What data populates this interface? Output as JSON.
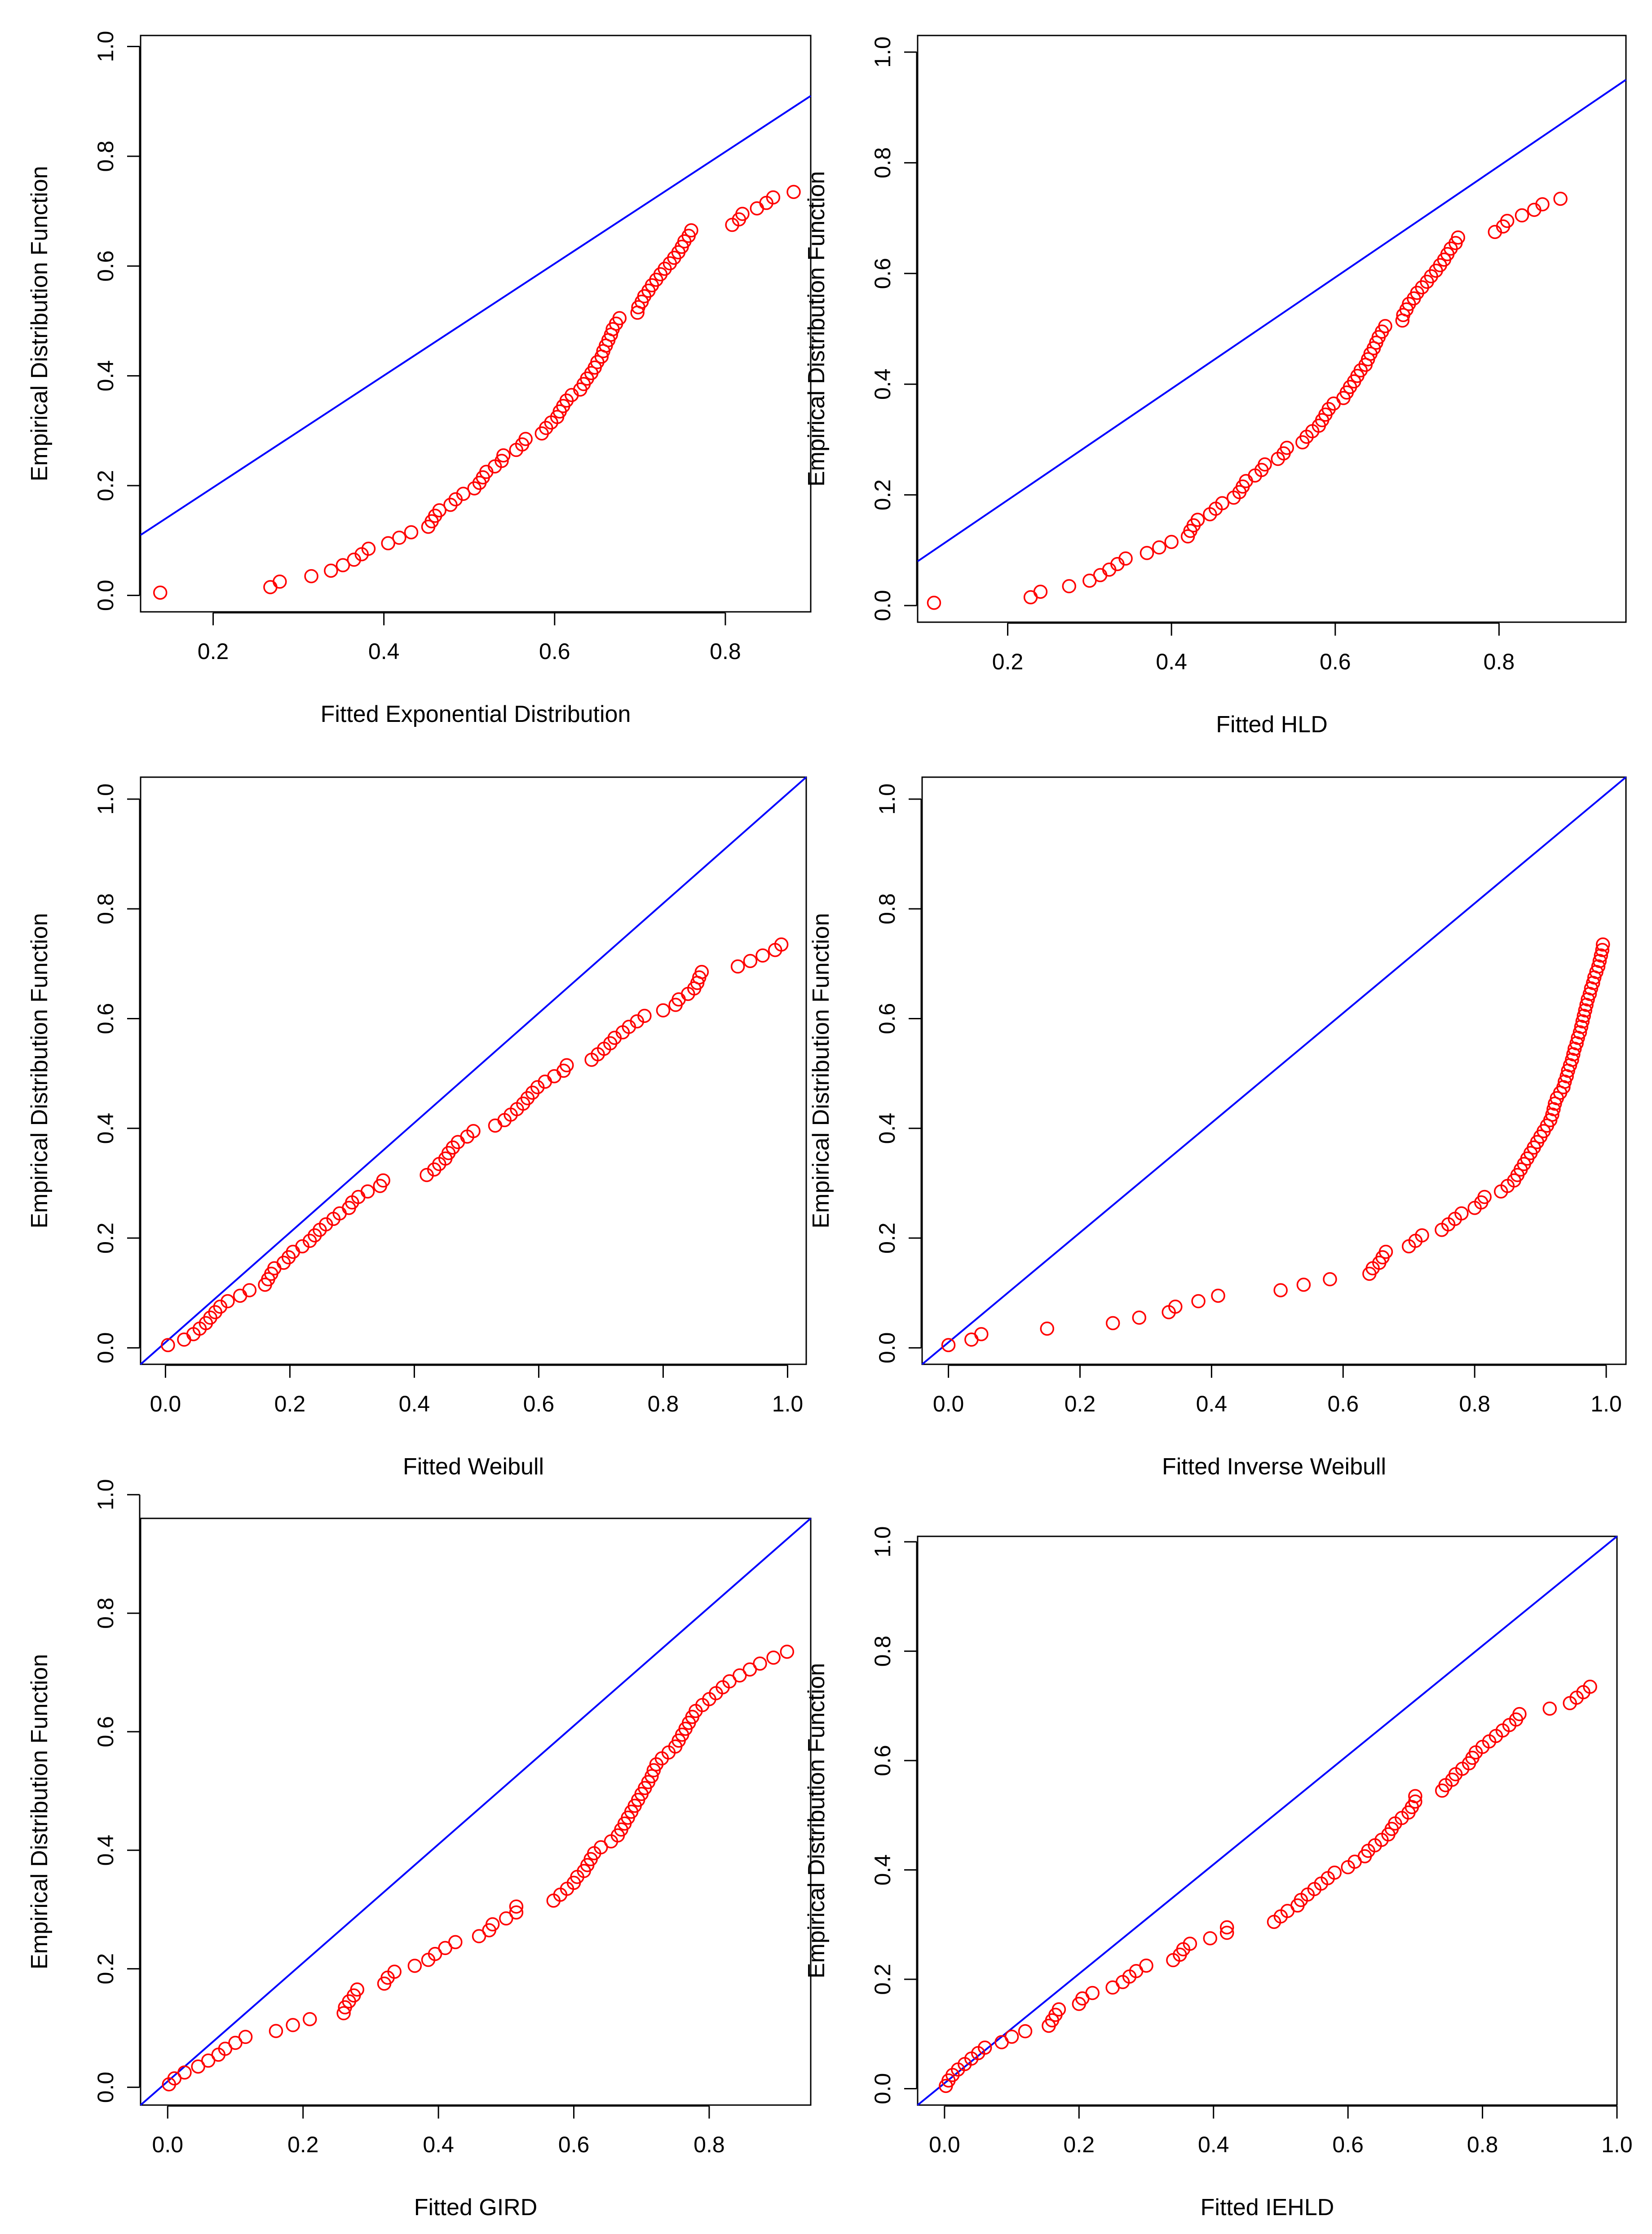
{
  "chart_data": [
    {
      "type": "scatter",
      "xlabel": "Fitted Exponential Distribution",
      "ylabel": "Empirical Distribution Function",
      "xlim": [
        0.115,
        0.9
      ],
      "ylim": [
        -0.03,
        1.02
      ],
      "xticks": [
        0.2,
        0.4,
        0.6,
        0.8
      ],
      "xtick_labels": [
        "0.2",
        "0.4",
        "0.6",
        "0.8"
      ],
      "yticks": [
        0.0,
        0.2,
        0.4,
        0.6,
        0.8,
        1.0
      ],
      "ytick_labels": [
        "0.0",
        "0.2",
        "0.4",
        "0.6",
        "0.8",
        "1.0"
      ],
      "reference_line": [
        [
          0.115,
          0.11
        ],
        [
          0.9,
          0.91
        ]
      ],
      "points_x": [
        0.138,
        0.267,
        0.278,
        0.315,
        0.338,
        0.352,
        0.365,
        0.374,
        0.382,
        0.405,
        0.418,
        0.432,
        0.452,
        0.456,
        0.46,
        0.465,
        0.478,
        0.484,
        0.493,
        0.506,
        0.512,
        0.516,
        0.52,
        0.53,
        0.538,
        0.54,
        0.555,
        0.562,
        0.566,
        0.585,
        0.59,
        0.596,
        0.603,
        0.606,
        0.61,
        0.614,
        0.62,
        0.63,
        0.634,
        0.638,
        0.643,
        0.647,
        0.65,
        0.655,
        0.657,
        0.66,
        0.663,
        0.666,
        0.668,
        0.672,
        0.676,
        0.697,
        0.698,
        0.702,
        0.705,
        0.71,
        0.714,
        0.719,
        0.724,
        0.729,
        0.735,
        0.74,
        0.745,
        0.749,
        0.752,
        0.757,
        0.76,
        0.808,
        0.816,
        0.82,
        0.837,
        0.848,
        0.856,
        0.88
      ],
      "points_y": [
        0.005,
        0.015,
        0.025,
        0.035,
        0.045,
        0.055,
        0.065,
        0.075,
        0.085,
        0.095,
        0.105,
        0.115,
        0.125,
        0.135,
        0.145,
        0.155,
        0.165,
        0.175,
        0.185,
        0.195,
        0.205,
        0.215,
        0.225,
        0.235,
        0.245,
        0.255,
        0.265,
        0.275,
        0.285,
        0.295,
        0.305,
        0.315,
        0.325,
        0.335,
        0.345,
        0.355,
        0.365,
        0.375,
        0.385,
        0.395,
        0.405,
        0.415,
        0.425,
        0.435,
        0.445,
        0.455,
        0.465,
        0.475,
        0.485,
        0.495,
        0.505,
        0.515,
        0.525,
        0.535,
        0.545,
        0.555,
        0.565,
        0.575,
        0.585,
        0.595,
        0.605,
        0.615,
        0.625,
        0.635,
        0.645,
        0.655,
        0.665,
        0.675,
        0.685,
        0.695,
        0.705,
        0.715,
        0.725,
        0.735
      ]
    },
    {
      "type": "scatter",
      "xlabel": "Fitted HLD",
      "ylabel": "Empirical Distribution Function",
      "xlim": [
        0.09,
        0.955
      ],
      "ylim": [
        -0.03,
        1.03
      ],
      "xticks": [
        0.2,
        0.4,
        0.6,
        0.8
      ],
      "xtick_labels": [
        "0.2",
        "0.4",
        "0.6",
        "0.8"
      ],
      "yticks": [
        0.0,
        0.2,
        0.4,
        0.6,
        0.8,
        1.0
      ],
      "ytick_labels": [
        "0.0",
        "0.2",
        "0.4",
        "0.6",
        "0.8",
        "1.0"
      ],
      "reference_line": [
        [
          0.09,
          0.08
        ],
        [
          0.955,
          0.95
        ]
      ],
      "points_x": [
        0.11,
        0.228,
        0.24,
        0.275,
        0.3,
        0.313,
        0.324,
        0.334,
        0.344,
        0.37,
        0.385,
        0.4,
        0.42,
        0.423,
        0.427,
        0.432,
        0.447,
        0.454,
        0.462,
        0.476,
        0.483,
        0.487,
        0.491,
        0.502,
        0.51,
        0.514,
        0.53,
        0.537,
        0.541,
        0.56,
        0.565,
        0.572,
        0.58,
        0.584,
        0.588,
        0.592,
        0.598,
        0.61,
        0.614,
        0.618,
        0.623,
        0.627,
        0.631,
        0.637,
        0.64,
        0.643,
        0.647,
        0.65,
        0.653,
        0.657,
        0.661,
        0.682,
        0.683,
        0.687,
        0.69,
        0.696,
        0.7,
        0.706,
        0.712,
        0.717,
        0.723,
        0.728,
        0.733,
        0.737,
        0.741,
        0.747,
        0.75,
        0.795,
        0.805,
        0.81,
        0.828,
        0.843,
        0.853,
        0.875
      ],
      "points_y": [
        0.005,
        0.015,
        0.025,
        0.035,
        0.045,
        0.055,
        0.065,
        0.075,
        0.085,
        0.095,
        0.105,
        0.115,
        0.125,
        0.135,
        0.145,
        0.155,
        0.165,
        0.175,
        0.185,
        0.195,
        0.205,
        0.215,
        0.225,
        0.235,
        0.245,
        0.255,
        0.265,
        0.275,
        0.285,
        0.295,
        0.305,
        0.315,
        0.325,
        0.335,
        0.345,
        0.355,
        0.365,
        0.375,
        0.385,
        0.395,
        0.405,
        0.415,
        0.425,
        0.435,
        0.445,
        0.455,
        0.465,
        0.475,
        0.485,
        0.495,
        0.505,
        0.515,
        0.525,
        0.535,
        0.545,
        0.555,
        0.565,
        0.575,
        0.585,
        0.595,
        0.605,
        0.615,
        0.625,
        0.635,
        0.645,
        0.655,
        0.665,
        0.675,
        0.685,
        0.695,
        0.705,
        0.715,
        0.725,
        0.735
      ]
    },
    {
      "type": "scatter",
      "xlabel": "Fitted Weibull",
      "ylabel": "Empirical Distribution Function",
      "xlim": [
        -0.04,
        1.03
      ],
      "ylim": [
        -0.03,
        1.04
      ],
      "xticks": [
        0.0,
        0.2,
        0.4,
        0.6,
        0.8,
        1.0
      ],
      "xtick_labels": [
        "0.0",
        "0.2",
        "0.4",
        "0.6",
        "0.8",
        "1.0"
      ],
      "yticks": [
        0.0,
        0.2,
        0.4,
        0.6,
        0.8,
        1.0
      ],
      "ytick_labels": [
        "0.0",
        "0.2",
        "0.4",
        "0.6",
        "0.8",
        "1.0"
      ],
      "reference_line": [
        [
          -0.04,
          -0.03
        ],
        [
          1.03,
          1.04
        ]
      ],
      "points_x": [
        0.004,
        0.03,
        0.045,
        0.055,
        0.065,
        0.072,
        0.08,
        0.088,
        0.1,
        0.12,
        0.135,
        0.16,
        0.165,
        0.17,
        0.175,
        0.19,
        0.198,
        0.205,
        0.22,
        0.232,
        0.24,
        0.248,
        0.258,
        0.27,
        0.28,
        0.295,
        0.3,
        0.31,
        0.325,
        0.345,
        0.35,
        0.42,
        0.432,
        0.44,
        0.45,
        0.455,
        0.462,
        0.47,
        0.485,
        0.495,
        0.53,
        0.545,
        0.555,
        0.565,
        0.575,
        0.582,
        0.59,
        0.598,
        0.61,
        0.625,
        0.64,
        0.645,
        0.685,
        0.695,
        0.705,
        0.715,
        0.722,
        0.735,
        0.745,
        0.758,
        0.77,
        0.8,
        0.82,
        0.825,
        0.84,
        0.85,
        0.855,
        0.858,
        0.862,
        0.92,
        0.94,
        0.96,
        0.98,
        0.99
      ],
      "points_y": [
        0.005,
        0.015,
        0.025,
        0.035,
        0.045,
        0.055,
        0.065,
        0.075,
        0.085,
        0.095,
        0.105,
        0.115,
        0.125,
        0.135,
        0.145,
        0.155,
        0.165,
        0.175,
        0.185,
        0.195,
        0.205,
        0.215,
        0.225,
        0.235,
        0.245,
        0.255,
        0.265,
        0.275,
        0.285,
        0.295,
        0.305,
        0.315,
        0.325,
        0.335,
        0.345,
        0.355,
        0.365,
        0.375,
        0.385,
        0.395,
        0.405,
        0.415,
        0.425,
        0.435,
        0.445,
        0.455,
        0.465,
        0.475,
        0.485,
        0.495,
        0.505,
        0.515,
        0.525,
        0.535,
        0.545,
        0.555,
        0.565,
        0.575,
        0.585,
        0.595,
        0.605,
        0.615,
        0.625,
        0.635,
        0.645,
        0.655,
        0.665,
        0.675,
        0.685,
        0.695,
        0.705,
        0.715,
        0.725,
        0.735
      ]
    },
    {
      "type": "scatter",
      "xlabel": "Fitted Inverse Weibull",
      "ylabel": "Empirical Distribution Function",
      "xlim": [
        -0.04,
        1.03
      ],
      "ylim": [
        -0.03,
        1.04
      ],
      "xticks": [
        0.0,
        0.2,
        0.4,
        0.6,
        0.8,
        1.0
      ],
      "xtick_labels": [
        "0.0",
        "0.2",
        "0.4",
        "0.6",
        "0.8",
        "1.0"
      ],
      "yticks": [
        0.0,
        0.2,
        0.4,
        0.6,
        0.8,
        1.0
      ],
      "ytick_labels": [
        "0.0",
        "0.2",
        "0.4",
        "0.6",
        "0.8",
        "1.0"
      ],
      "reference_line": [
        [
          -0.04,
          -0.03
        ],
        [
          1.03,
          1.04
        ]
      ],
      "points_x": [
        0.0,
        0.035,
        0.05,
        0.15,
        0.25,
        0.29,
        0.335,
        0.345,
        0.38,
        0.41,
        0.505,
        0.54,
        0.58,
        0.64,
        0.645,
        0.655,
        0.66,
        0.665,
        0.7,
        0.71,
        0.72,
        0.75,
        0.76,
        0.77,
        0.78,
        0.8,
        0.81,
        0.815,
        0.84,
        0.85,
        0.86,
        0.865,
        0.87,
        0.875,
        0.88,
        0.885,
        0.89,
        0.895,
        0.9,
        0.905,
        0.91,
        0.915,
        0.918,
        0.92,
        0.922,
        0.925,
        0.93,
        0.935,
        0.937,
        0.94,
        0.942,
        0.945,
        0.948,
        0.95,
        0.952,
        0.955,
        0.957,
        0.96,
        0.962,
        0.964,
        0.966,
        0.968,
        0.97,
        0.972,
        0.975,
        0.977,
        0.98,
        0.982,
        0.985,
        0.988,
        0.99,
        0.992,
        0.994,
        0.995
      ],
      "points_y": [
        0.005,
        0.015,
        0.025,
        0.035,
        0.045,
        0.055,
        0.065,
        0.075,
        0.085,
        0.095,
        0.105,
        0.115,
        0.125,
        0.135,
        0.145,
        0.155,
        0.165,
        0.175,
        0.185,
        0.195,
        0.205,
        0.215,
        0.225,
        0.235,
        0.245,
        0.255,
        0.265,
        0.275,
        0.285,
        0.295,
        0.305,
        0.315,
        0.325,
        0.335,
        0.345,
        0.355,
        0.365,
        0.375,
        0.385,
        0.395,
        0.405,
        0.415,
        0.425,
        0.435,
        0.445,
        0.455,
        0.465,
        0.475,
        0.485,
        0.495,
        0.505,
        0.515,
        0.525,
        0.535,
        0.545,
        0.555,
        0.565,
        0.575,
        0.585,
        0.595,
        0.605,
        0.615,
        0.625,
        0.635,
        0.645,
        0.655,
        0.665,
        0.675,
        0.685,
        0.695,
        0.705,
        0.715,
        0.725,
        0.735
      ]
    },
    {
      "type": "scatter",
      "xlabel": "Fitted GIRD",
      "ylabel": "Empirical Distribution Function",
      "xlim": [
        -0.04,
        0.95
      ],
      "ylim": [
        -0.03,
        0.96
      ],
      "xticks": [
        0.0,
        0.2,
        0.4,
        0.6,
        0.8
      ],
      "xtick_labels": [
        "0.0",
        "0.2",
        "0.4",
        "0.6",
        "0.8"
      ],
      "yticks": [
        0.0,
        0.2,
        0.4,
        0.6,
        0.8,
        1.0
      ],
      "ytick_labels": [
        "0.0",
        "0.2",
        "0.4",
        "0.6",
        "0.8",
        "1.0"
      ],
      "reference_line": [
        [
          -0.04,
          -0.03
        ],
        [
          0.95,
          0.96
        ]
      ],
      "points_x": [
        0.002,
        0.01,
        0.025,
        0.045,
        0.06,
        0.075,
        0.085,
        0.1,
        0.115,
        0.16,
        0.185,
        0.21,
        0.26,
        0.262,
        0.268,
        0.275,
        0.28,
        0.32,
        0.325,
        0.335,
        0.365,
        0.385,
        0.395,
        0.41,
        0.425,
        0.46,
        0.475,
        0.48,
        0.5,
        0.515,
        0.515,
        0.57,
        0.58,
        0.59,
        0.6,
        0.605,
        0.615,
        0.62,
        0.625,
        0.63,
        0.64,
        0.655,
        0.665,
        0.67,
        0.675,
        0.68,
        0.685,
        0.69,
        0.695,
        0.7,
        0.705,
        0.71,
        0.715,
        0.718,
        0.722,
        0.73,
        0.74,
        0.75,
        0.755,
        0.76,
        0.765,
        0.77,
        0.775,
        0.78,
        0.79,
        0.8,
        0.81,
        0.82,
        0.83,
        0.845,
        0.86,
        0.875,
        0.895,
        0.915
      ],
      "points_y": [
        0.005,
        0.015,
        0.025,
        0.035,
        0.045,
        0.055,
        0.065,
        0.075,
        0.085,
        0.095,
        0.105,
        0.115,
        0.125,
        0.135,
        0.145,
        0.155,
        0.165,
        0.175,
        0.185,
        0.195,
        0.205,
        0.215,
        0.225,
        0.235,
        0.245,
        0.255,
        0.265,
        0.275,
        0.285,
        0.295,
        0.305,
        0.315,
        0.325,
        0.335,
        0.345,
        0.355,
        0.365,
        0.375,
        0.385,
        0.395,
        0.405,
        0.415,
        0.425,
        0.435,
        0.445,
        0.455,
        0.465,
        0.475,
        0.485,
        0.495,
        0.505,
        0.515,
        0.525,
        0.535,
        0.545,
        0.555,
        0.565,
        0.575,
        0.585,
        0.595,
        0.605,
        0.615,
        0.625,
        0.635,
        0.645,
        0.655,
        0.665,
        0.675,
        0.685,
        0.695,
        0.705,
        0.715,
        0.725,
        0.735
      ]
    },
    {
      "type": "scatter",
      "xlabel": "Fitted IEHLD",
      "ylabel": "Empirical Distribution Function",
      "xlim": [
        -0.04,
        1.0
      ],
      "ylim": [
        -0.03,
        1.01
      ],
      "xticks": [
        0.0,
        0.2,
        0.4,
        0.6,
        0.8,
        1.0
      ],
      "xtick_labels": [
        "0.0",
        "0.2",
        "0.4",
        "0.6",
        "0.8",
        "1.0"
      ],
      "yticks": [
        0.0,
        0.2,
        0.4,
        0.6,
        0.8,
        1.0
      ],
      "ytick_labels": [
        "0.0",
        "0.2",
        "0.4",
        "0.6",
        "0.8",
        "1.0"
      ],
      "reference_line": [
        [
          -0.04,
          -0.03
        ],
        [
          1.0,
          1.01
        ]
      ],
      "points_x": [
        0.002,
        0.006,
        0.012,
        0.02,
        0.03,
        0.04,
        0.05,
        0.06,
        0.085,
        0.1,
        0.12,
        0.155,
        0.16,
        0.165,
        0.17,
        0.2,
        0.205,
        0.22,
        0.25,
        0.265,
        0.275,
        0.285,
        0.3,
        0.34,
        0.35,
        0.355,
        0.365,
        0.395,
        0.42,
        0.42,
        0.49,
        0.5,
        0.51,
        0.525,
        0.53,
        0.54,
        0.55,
        0.56,
        0.57,
        0.58,
        0.6,
        0.61,
        0.625,
        0.63,
        0.64,
        0.65,
        0.66,
        0.665,
        0.67,
        0.68,
        0.69,
        0.695,
        0.7,
        0.7,
        0.74,
        0.745,
        0.755,
        0.76,
        0.77,
        0.78,
        0.785,
        0.79,
        0.8,
        0.81,
        0.82,
        0.83,
        0.84,
        0.85,
        0.855,
        0.9,
        0.93,
        0.94,
        0.95,
        0.96
      ],
      "points_y": [
        0.005,
        0.015,
        0.025,
        0.035,
        0.045,
        0.055,
        0.065,
        0.075,
        0.085,
        0.095,
        0.105,
        0.115,
        0.125,
        0.135,
        0.145,
        0.155,
        0.165,
        0.175,
        0.185,
        0.195,
        0.205,
        0.215,
        0.225,
        0.235,
        0.245,
        0.255,
        0.265,
        0.275,
        0.285,
        0.295,
        0.305,
        0.315,
        0.325,
        0.335,
        0.345,
        0.355,
        0.365,
        0.375,
        0.385,
        0.395,
        0.405,
        0.415,
        0.425,
        0.435,
        0.445,
        0.455,
        0.465,
        0.475,
        0.485,
        0.495,
        0.505,
        0.515,
        0.525,
        0.535,
        0.545,
        0.555,
        0.565,
        0.575,
        0.585,
        0.595,
        0.605,
        0.615,
        0.625,
        0.635,
        0.645,
        0.655,
        0.665,
        0.675,
        0.685,
        0.695,
        0.705,
        0.715,
        0.725,
        0.735
      ]
    }
  ],
  "colors": {
    "points": "#ff0000",
    "reference_line": "#0000ff",
    "axes": "#000000",
    "background": "#ffffff"
  }
}
